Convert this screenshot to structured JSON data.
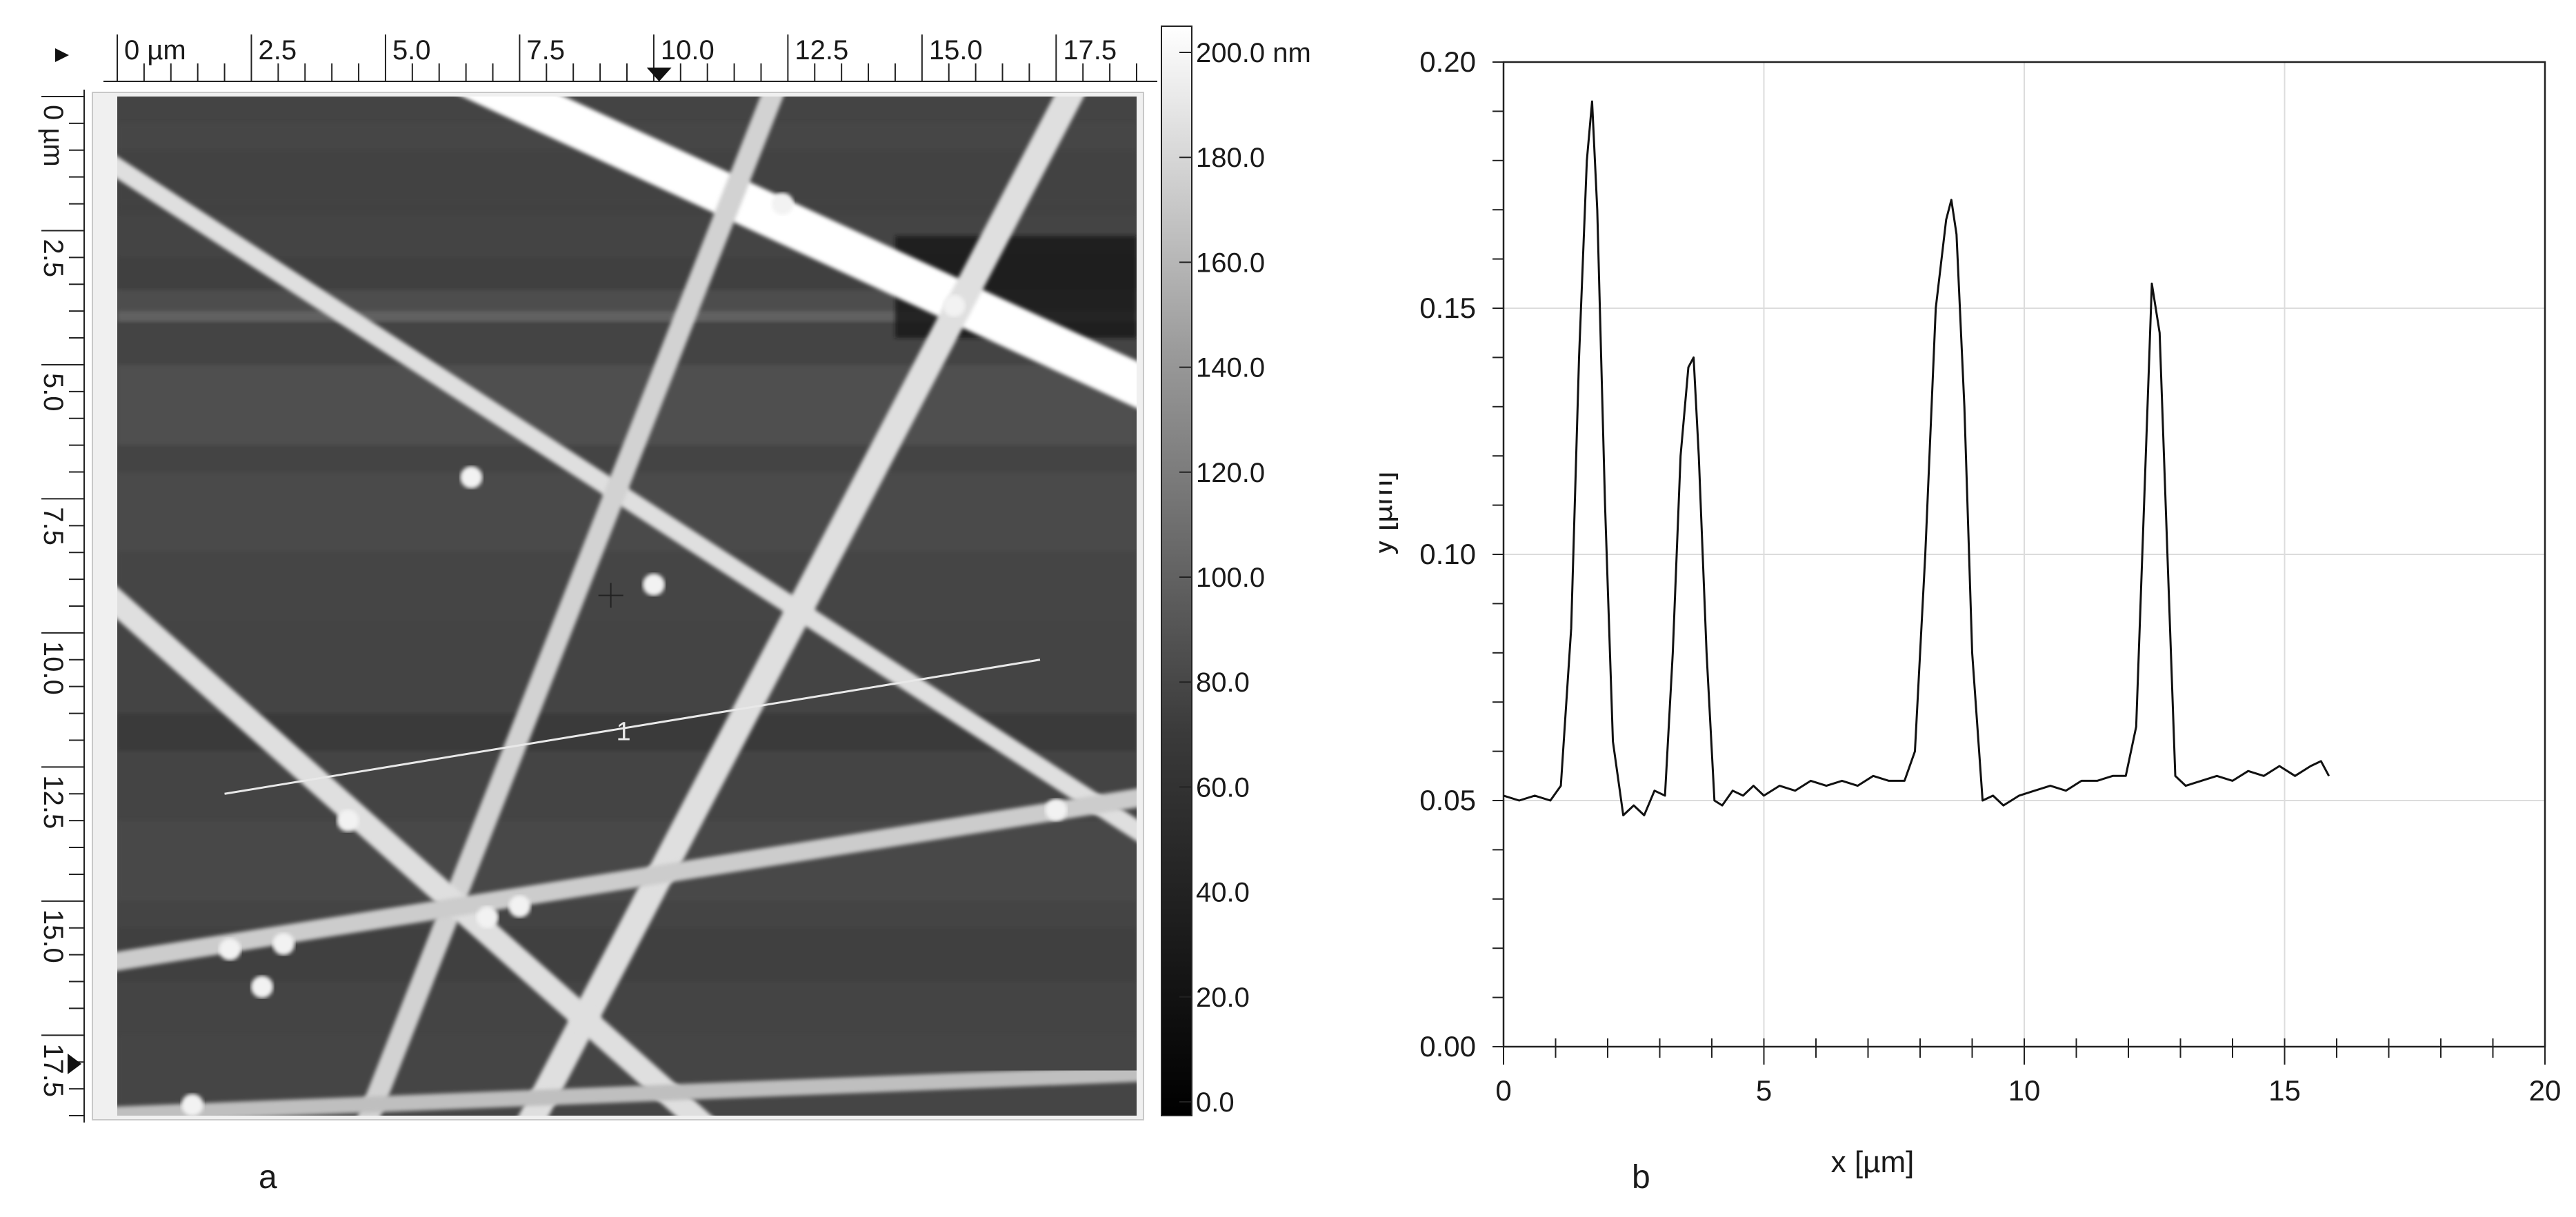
{
  "panels": {
    "a_label": "a",
    "b_label": "b"
  },
  "afm_image": {
    "x_ruler": {
      "unit_first": "0 µm",
      "tick_labels": [
        {
          "value": 0,
          "text": "0 µm"
        },
        {
          "value": 2.5,
          "text": "2.5"
        },
        {
          "value": 5.0,
          "text": "5.0"
        },
        {
          "value": 7.5,
          "text": "7.5"
        },
        {
          "value": 10.0,
          "text": "10.0"
        },
        {
          "value": 12.5,
          "text": "12.5"
        },
        {
          "value": 15.0,
          "text": "15.0"
        },
        {
          "value": 17.5,
          "text": "17.5"
        }
      ],
      "range": [
        0,
        19
      ]
    },
    "y_ruler": {
      "tick_labels": [
        {
          "value": 0,
          "text": "0 µm"
        },
        {
          "value": 2.5,
          "text": "2.5"
        },
        {
          "value": 5.0,
          "text": "5.0"
        },
        {
          "value": 7.5,
          "text": "7.5"
        },
        {
          "value": 10.0,
          "text": "10.0"
        },
        {
          "value": 12.5,
          "text": "12.5"
        },
        {
          "value": 15.0,
          "text": "15.0"
        },
        {
          "value": 17.5,
          "text": "17.5"
        }
      ],
      "range": [
        0,
        19
      ]
    },
    "colorbar": {
      "labels": [
        "200.0 nm",
        "180.0",
        "160.0",
        "140.0",
        "120.0",
        "100.0",
        "80.0",
        "60.0",
        "40.0",
        "20.0",
        "0.0"
      ],
      "min": 0,
      "max": 200,
      "colormap": "grayscale"
    },
    "profile_line_label": "1",
    "fibers": [
      {
        "x1": 6.3,
        "y1": -0.5,
        "x2": 19.5,
        "y2": 5.6,
        "height_nm": 200,
        "width_um": 0.8
      },
      {
        "x1": -0.5,
        "y1": 1.0,
        "x2": 19.5,
        "y2": 14.0,
        "height_nm": 175,
        "width_um": 0.35
      },
      {
        "x1": 12.4,
        "y1": -0.5,
        "x2": 4.5,
        "y2": 19.5,
        "height_nm": 165,
        "width_um": 0.4
      },
      {
        "x1": 18.0,
        "y1": -0.5,
        "x2": 7.5,
        "y2": 19.5,
        "height_nm": 175,
        "width_um": 0.5
      },
      {
        "x1": -0.5,
        "y1": 9.0,
        "x2": 11.3,
        "y2": 19.5,
        "height_nm": 175,
        "width_um": 0.45
      },
      {
        "x1": -0.5,
        "y1": 16.2,
        "x2": 19.5,
        "y2": 13.0,
        "height_nm": 160,
        "width_um": 0.35
      },
      {
        "x1": -0.5,
        "y1": 19.0,
        "x2": 19.5,
        "y2": 18.2,
        "height_nm": 150,
        "width_um": 0.3
      }
    ],
    "profile_line": {
      "x1": 2.0,
      "y1": 13.0,
      "x2": 17.2,
      "y2": 10.5
    }
  },
  "chart_data": {
    "type": "line",
    "xlabel": "x [µm]",
    "ylabel": "y [µm]",
    "xlim": [
      0,
      20
    ],
    "ylim": [
      0,
      0.2
    ],
    "x_ticks": [
      0,
      5,
      10,
      15,
      20
    ],
    "y_ticks": [
      0.0,
      0.05,
      0.1,
      0.15,
      0.2
    ],
    "y_tick_labels": [
      "0.00",
      "0.05",
      "0.10",
      "0.15",
      "0.20"
    ],
    "x_tick_labels": [
      "0",
      "5",
      "10",
      "15",
      "20"
    ],
    "grid": true,
    "series": [
      {
        "x": [
          0.0,
          0.3,
          0.6,
          0.9,
          1.1,
          1.3,
          1.45,
          1.6,
          1.7,
          1.8,
          1.95,
          2.1,
          2.3,
          2.5,
          2.7,
          2.9,
          3.1,
          3.25,
          3.4,
          3.55,
          3.65,
          3.75,
          3.9,
          4.05,
          4.2,
          4.4,
          4.6,
          4.8,
          5.0,
          5.3,
          5.6,
          5.9,
          6.2,
          6.5,
          6.8,
          7.1,
          7.4,
          7.7,
          7.9,
          8.1,
          8.3,
          8.5,
          8.6,
          8.7,
          8.85,
          9.0,
          9.2,
          9.4,
          9.6,
          9.9,
          10.2,
          10.5,
          10.8,
          11.1,
          11.4,
          11.7,
          11.95,
          12.15,
          12.3,
          12.45,
          12.6,
          12.75,
          12.9,
          13.1,
          13.4,
          13.7,
          14.0,
          14.3,
          14.6,
          14.9,
          15.2,
          15.5,
          15.7,
          15.85
        ],
        "y": [
          0.051,
          0.05,
          0.051,
          0.05,
          0.053,
          0.085,
          0.14,
          0.18,
          0.192,
          0.17,
          0.11,
          0.062,
          0.047,
          0.049,
          0.047,
          0.052,
          0.051,
          0.08,
          0.12,
          0.138,
          0.14,
          0.12,
          0.08,
          0.05,
          0.049,
          0.052,
          0.051,
          0.053,
          0.051,
          0.053,
          0.052,
          0.054,
          0.053,
          0.054,
          0.053,
          0.055,
          0.054,
          0.054,
          0.06,
          0.1,
          0.15,
          0.168,
          0.172,
          0.165,
          0.13,
          0.08,
          0.05,
          0.051,
          0.049,
          0.051,
          0.052,
          0.053,
          0.052,
          0.054,
          0.054,
          0.055,
          0.055,
          0.065,
          0.11,
          0.155,
          0.145,
          0.1,
          0.055,
          0.053,
          0.054,
          0.055,
          0.054,
          0.056,
          0.055,
          0.057,
          0.055,
          0.057,
          0.058,
          0.055
        ]
      }
    ]
  }
}
